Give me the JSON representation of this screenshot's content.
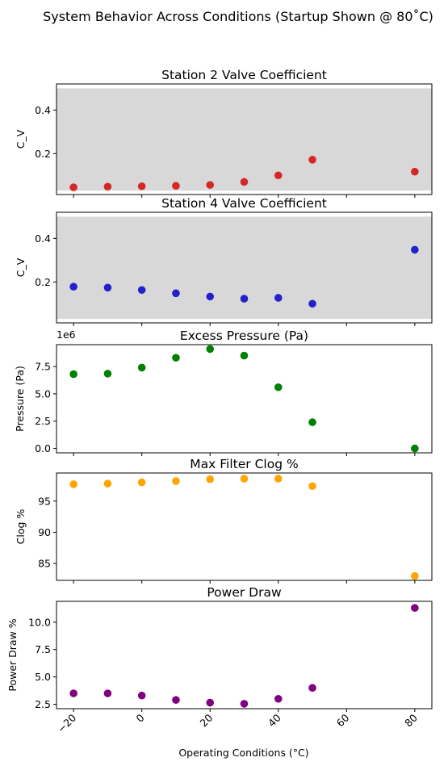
{
  "figure": {
    "suptitle": "System Behavior Across Conditions (Startup Shown @ 80˚C)",
    "xlabel": "Operating Conditions (°C)",
    "xticks": [
      "−20",
      "0",
      "20",
      "40",
      "60",
      "80"
    ]
  },
  "chart_data": [
    {
      "type": "scatter",
      "title": "Station 2 Valve Coefficient",
      "ylabel": "C_V",
      "xlim": [
        -25,
        85
      ],
      "ylim": [
        0.012,
        0.52
      ],
      "yticks": [
        0.2,
        0.4
      ],
      "yticklabels": [
        "0.2",
        "0.4"
      ],
      "band": [
        0.03,
        0.5
      ],
      "band_color": "#d8d8d8",
      "color": "#d62728",
      "x": [
        -20,
        -10,
        0,
        10,
        20,
        30,
        40,
        50,
        80
      ],
      "y": [
        0.045,
        0.048,
        0.05,
        0.052,
        0.056,
        0.07,
        0.1,
        0.172,
        0.117
      ]
    },
    {
      "type": "scatter",
      "title": "Station 4 Valve Coefficient",
      "ylabel": "C_V",
      "xlim": [
        -25,
        85
      ],
      "ylim": [
        0.012,
        0.52
      ],
      "yticks": [
        0.2,
        0.4
      ],
      "yticklabels": [
        "0.2",
        "0.4"
      ],
      "band": [
        0.03,
        0.5
      ],
      "band_color": "#d8d8d8",
      "color": "#2222cc",
      "x": [
        -20,
        -10,
        0,
        10,
        20,
        30,
        40,
        50,
        80
      ],
      "y": [
        0.178,
        0.174,
        0.163,
        0.148,
        0.133,
        0.123,
        0.127,
        0.1,
        0.348
      ]
    },
    {
      "type": "scatter",
      "title": "Excess Pressure (Pa)",
      "ylabel": "Pressure (Pa)",
      "offset_text": "1e6",
      "xlim": [
        -25,
        85
      ],
      "ylim": [
        -400000,
        9500000
      ],
      "yticks": [
        0,
        2500000,
        5000000,
        7500000
      ],
      "yticklabels": [
        "0.0",
        "2.5",
        "5.0",
        "7.5"
      ],
      "color": "#008000",
      "x": [
        -20,
        -10,
        0,
        10,
        20,
        30,
        40,
        50,
        80
      ],
      "y": [
        6800000,
        6850000,
        7400000,
        8300000,
        9100000,
        8500000,
        5600000,
        2400000,
        0
      ]
    },
    {
      "type": "scatter",
      "title": "Max Filter Clog %",
      "ylabel": "Clog %",
      "xlim": [
        -25,
        85
      ],
      "ylim": [
        82.3,
        99.5
      ],
      "yticks": [
        85,
        90,
        95
      ],
      "yticklabels": [
        "85",
        "90",
        "95"
      ],
      "color": "#ffa500",
      "x": [
        -20,
        -10,
        0,
        10,
        20,
        30,
        40,
        50,
        80
      ],
      "y": [
        97.7,
        97.8,
        98.0,
        98.2,
        98.5,
        98.6,
        98.6,
        97.4,
        83.0
      ]
    },
    {
      "type": "scatter",
      "title": "Power Draw",
      "ylabel": "Power Draw %",
      "xlim": [
        -25,
        85
      ],
      "ylim": [
        2.1,
        11.9
      ],
      "yticks": [
        2.5,
        5.0,
        7.5,
        10.0
      ],
      "yticklabels": [
        "2.5",
        "5.0",
        "7.5",
        "10.0"
      ],
      "color": "#800080",
      "x": [
        -20,
        -10,
        0,
        10,
        20,
        30,
        40,
        50,
        80
      ],
      "y": [
        3.5,
        3.5,
        3.3,
        2.9,
        2.65,
        2.55,
        3.0,
        4.0,
        11.3
      ]
    }
  ]
}
